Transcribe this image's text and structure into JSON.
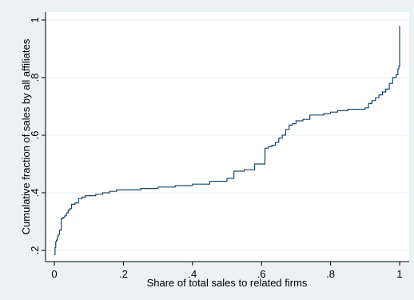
{
  "chart_data": {
    "type": "line",
    "title": "",
    "xlabel": "Share of total sales to related firms",
    "ylabel": "Cumulative fraction of sales by all affiliates",
    "xlim": [
      0,
      1
    ],
    "ylim": [
      0.18,
      1.0
    ],
    "xticks": [
      0,
      0.2,
      0.4,
      0.6,
      0.8,
      1
    ],
    "xtick_labels": [
      "0",
      ".2",
      ".4",
      ".6",
      ".8",
      "1"
    ],
    "yticks": [
      0.2,
      0.4,
      0.6,
      0.8,
      1
    ],
    "ytick_labels": [
      ".2",
      ".4",
      ".6",
      ".8",
      "1"
    ],
    "grid": "horizontal",
    "legend": "none",
    "colors": {
      "background": "#eaf2f3",
      "plot_area": "#ffffff",
      "line": "#1a476f",
      "grid": "#eaf2f3"
    },
    "series": [
      {
        "x": [
          0,
          0.002,
          0.004,
          0.006,
          0.008,
          0.01,
          0.012,
          0.015,
          0.02,
          0.025,
          0.03,
          0.035,
          0.04,
          0.045,
          0.05,
          0.06,
          0.07,
          0.08,
          0.09,
          0.1,
          0.12,
          0.14,
          0.16,
          0.18,
          0.2,
          0.25,
          0.3,
          0.35,
          0.4,
          0.45,
          0.5,
          0.52,
          0.55,
          0.58,
          0.6,
          0.61,
          0.62,
          0.625,
          0.63,
          0.64,
          0.65,
          0.66,
          0.67,
          0.68,
          0.69,
          0.7,
          0.72,
          0.74,
          0.76,
          0.78,
          0.8,
          0.82,
          0.85,
          0.87,
          0.9,
          0.91,
          0.92,
          0.93,
          0.94,
          0.95,
          0.96,
          0.97,
          0.98,
          0.99,
          0.995,
          0.998,
          1.0
        ],
        "y": [
          0.185,
          0.21,
          0.23,
          0.235,
          0.24,
          0.25,
          0.255,
          0.27,
          0.31,
          0.315,
          0.32,
          0.33,
          0.34,
          0.345,
          0.36,
          0.365,
          0.38,
          0.385,
          0.39,
          0.39,
          0.395,
          0.4,
          0.405,
          0.41,
          0.41,
          0.415,
          0.42,
          0.425,
          0.43,
          0.44,
          0.45,
          0.475,
          0.48,
          0.5,
          0.5,
          0.555,
          0.56,
          0.56,
          0.565,
          0.575,
          0.59,
          0.6,
          0.62,
          0.635,
          0.64,
          0.65,
          0.655,
          0.67,
          0.67,
          0.675,
          0.68,
          0.685,
          0.69,
          0.69,
          0.695,
          0.71,
          0.72,
          0.73,
          0.74,
          0.75,
          0.76,
          0.78,
          0.8,
          0.81,
          0.83,
          0.84,
          0.98
        ]
      }
    ]
  }
}
